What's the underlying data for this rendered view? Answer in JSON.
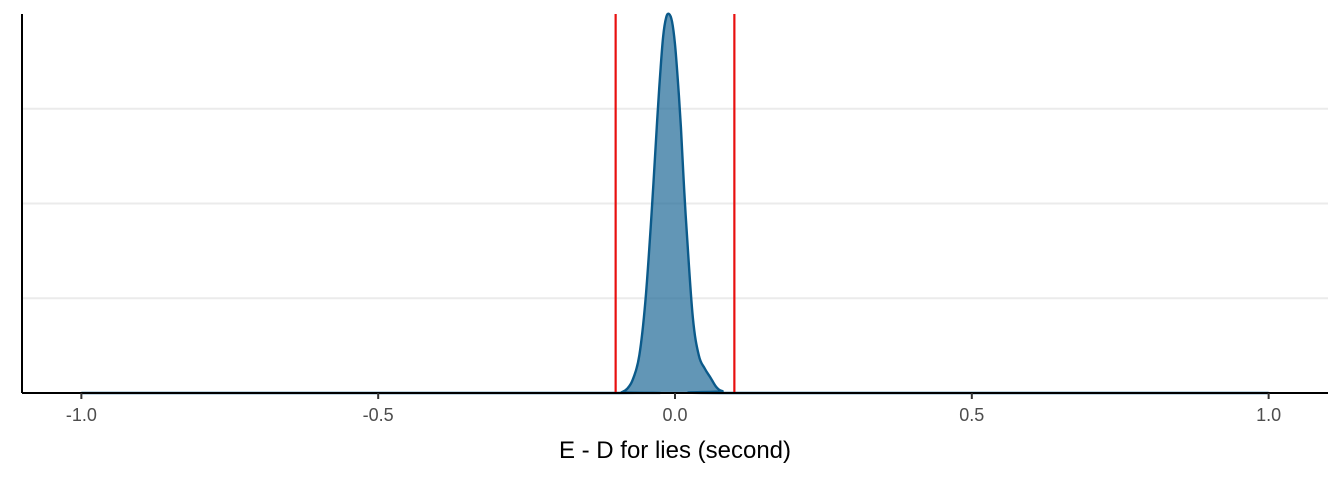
{
  "chart_data": {
    "type": "area",
    "title": "",
    "xlabel": "E - D for lies (second)",
    "ylabel": "",
    "xlim": [
      -1.1,
      1.1
    ],
    "ylim": [
      0,
      1
    ],
    "x_ticks": [
      -1.0,
      -0.5,
      0.0,
      0.5,
      1.0
    ],
    "x_tick_labels": [
      "-1.0",
      "-0.5",
      "0.0",
      "0.5",
      "1.0"
    ],
    "y_grid_fractions": [
      0.25,
      0.5,
      0.75
    ],
    "grid": "horizontal-major",
    "legend": "none",
    "series": [
      {
        "x": [
          -1.0,
          -0.1,
          -0.09,
          -0.08,
          -0.07,
          -0.06,
          -0.05,
          -0.04,
          -0.03,
          -0.025,
          -0.02,
          -0.015,
          -0.01,
          -0.005,
          0.0,
          0.005,
          0.01,
          0.015,
          0.02,
          0.03,
          0.04,
          0.05,
          0.06,
          0.07,
          0.08,
          0.1,
          1.0
        ],
        "y": [
          0.0,
          0.0,
          0.002,
          0.012,
          0.04,
          0.1,
          0.24,
          0.46,
          0.72,
          0.84,
          0.94,
          0.99,
          1.0,
          0.98,
          0.92,
          0.82,
          0.7,
          0.55,
          0.42,
          0.2,
          0.1,
          0.065,
          0.04,
          0.015,
          0.005,
          0.0,
          0.0
        ],
        "fill_color": "#1f6a97",
        "fill_opacity": 0.7,
        "line_color": "#0b5a8a"
      }
    ],
    "reference_lines": [
      {
        "x": -0.1,
        "color": "#e8100f"
      },
      {
        "x": 0.1,
        "color": "#e8100f"
      }
    ],
    "colors": {
      "grid": "#ebebeb",
      "axis": "#000000",
      "tick_label": "#4d4d4d"
    }
  }
}
